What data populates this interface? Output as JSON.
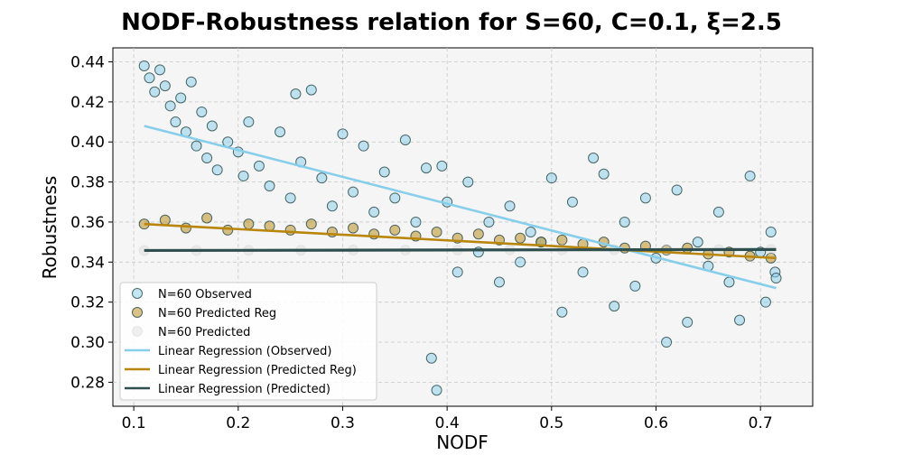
{
  "chart_data": {
    "type": "scatter",
    "title": "NODF-Robustness relation for S=60, C=0.1, ξ=2.5",
    "xlabel": "NODF",
    "ylabel": "Robustness",
    "xlim": [
      0.08,
      0.75
    ],
    "ylim": [
      0.268,
      0.447
    ],
    "xticks": [
      0.1,
      0.2,
      0.3,
      0.4,
      0.5,
      0.6,
      0.7
    ],
    "xtick_labels": [
      "0.1",
      "0.2",
      "0.3",
      "0.4",
      "0.5",
      "0.6",
      "0.7"
    ],
    "yticks": [
      0.28,
      0.3,
      0.32,
      0.34,
      0.36,
      0.38,
      0.4,
      0.42,
      0.44
    ],
    "ytick_labels": [
      "0.28",
      "0.30",
      "0.32",
      "0.34",
      "0.36",
      "0.38",
      "0.40",
      "0.42",
      "0.44"
    ],
    "grid": true,
    "legend_position": "lower-left",
    "series": [
      {
        "name": "N=60 Observed",
        "kind": "scatter",
        "color": "#87CEEB",
        "edge_color": "#2f4f4f",
        "points": [
          [
            0.11,
            0.438
          ],
          [
            0.115,
            0.432
          ],
          [
            0.12,
            0.425
          ],
          [
            0.125,
            0.436
          ],
          [
            0.13,
            0.428
          ],
          [
            0.135,
            0.418
          ],
          [
            0.14,
            0.41
          ],
          [
            0.145,
            0.422
          ],
          [
            0.15,
            0.405
          ],
          [
            0.155,
            0.43
          ],
          [
            0.16,
            0.398
          ],
          [
            0.165,
            0.415
          ],
          [
            0.17,
            0.392
          ],
          [
            0.175,
            0.408
          ],
          [
            0.18,
            0.386
          ],
          [
            0.19,
            0.4
          ],
          [
            0.2,
            0.395
          ],
          [
            0.205,
            0.383
          ],
          [
            0.21,
            0.41
          ],
          [
            0.22,
            0.388
          ],
          [
            0.23,
            0.378
          ],
          [
            0.24,
            0.405
          ],
          [
            0.25,
            0.372
          ],
          [
            0.255,
            0.424
          ],
          [
            0.26,
            0.39
          ],
          [
            0.27,
            0.426
          ],
          [
            0.28,
            0.382
          ],
          [
            0.29,
            0.368
          ],
          [
            0.3,
            0.404
          ],
          [
            0.31,
            0.375
          ],
          [
            0.32,
            0.398
          ],
          [
            0.33,
            0.365
          ],
          [
            0.34,
            0.385
          ],
          [
            0.35,
            0.372
          ],
          [
            0.36,
            0.401
          ],
          [
            0.37,
            0.36
          ],
          [
            0.38,
            0.387
          ],
          [
            0.385,
            0.292
          ],
          [
            0.39,
            0.276
          ],
          [
            0.395,
            0.388
          ],
          [
            0.4,
            0.37
          ],
          [
            0.41,
            0.335
          ],
          [
            0.42,
            0.38
          ],
          [
            0.43,
            0.345
          ],
          [
            0.44,
            0.36
          ],
          [
            0.45,
            0.33
          ],
          [
            0.46,
            0.368
          ],
          [
            0.47,
            0.34
          ],
          [
            0.48,
            0.355
          ],
          [
            0.49,
            0.35
          ],
          [
            0.5,
            0.382
          ],
          [
            0.51,
            0.315
          ],
          [
            0.52,
            0.37
          ],
          [
            0.53,
            0.335
          ],
          [
            0.54,
            0.392
          ],
          [
            0.55,
            0.384
          ],
          [
            0.56,
            0.318
          ],
          [
            0.57,
            0.36
          ],
          [
            0.58,
            0.328
          ],
          [
            0.59,
            0.372
          ],
          [
            0.6,
            0.342
          ],
          [
            0.61,
            0.3
          ],
          [
            0.62,
            0.376
          ],
          [
            0.63,
            0.31
          ],
          [
            0.64,
            0.35
          ],
          [
            0.65,
            0.338
          ],
          [
            0.66,
            0.365
          ],
          [
            0.67,
            0.33
          ],
          [
            0.68,
            0.311
          ],
          [
            0.69,
            0.383
          ],
          [
            0.7,
            0.345
          ],
          [
            0.705,
            0.32
          ],
          [
            0.71,
            0.355
          ],
          [
            0.714,
            0.335
          ],
          [
            0.715,
            0.332
          ]
        ]
      },
      {
        "name": "N=60 Predicted Reg",
        "kind": "scatter",
        "color": "#B8860B",
        "edge_color": "#2f4f4f",
        "points": [
          [
            0.11,
            0.359
          ],
          [
            0.13,
            0.361
          ],
          [
            0.15,
            0.357
          ],
          [
            0.17,
            0.362
          ],
          [
            0.19,
            0.356
          ],
          [
            0.21,
            0.359
          ],
          [
            0.23,
            0.358
          ],
          [
            0.25,
            0.356
          ],
          [
            0.27,
            0.359
          ],
          [
            0.29,
            0.355
          ],
          [
            0.31,
            0.357
          ],
          [
            0.33,
            0.354
          ],
          [
            0.35,
            0.356
          ],
          [
            0.37,
            0.353
          ],
          [
            0.39,
            0.355
          ],
          [
            0.41,
            0.352
          ],
          [
            0.43,
            0.354
          ],
          [
            0.45,
            0.351
          ],
          [
            0.47,
            0.352
          ],
          [
            0.49,
            0.35
          ],
          [
            0.51,
            0.351
          ],
          [
            0.53,
            0.349
          ],
          [
            0.55,
            0.35
          ],
          [
            0.57,
            0.347
          ],
          [
            0.59,
            0.348
          ],
          [
            0.61,
            0.346
          ],
          [
            0.63,
            0.347
          ],
          [
            0.65,
            0.344
          ],
          [
            0.67,
            0.345
          ],
          [
            0.69,
            0.343
          ],
          [
            0.71,
            0.342
          ]
        ]
      },
      {
        "name": "N=60 Predicted",
        "kind": "scatter",
        "color": "#d3d3d3",
        "edge_color": "#d3d3d3",
        "points": [
          [
            0.11,
            0.3458
          ],
          [
            0.16,
            0.3458
          ],
          [
            0.21,
            0.3459
          ],
          [
            0.26,
            0.3459
          ],
          [
            0.31,
            0.346
          ],
          [
            0.36,
            0.346
          ],
          [
            0.41,
            0.346
          ],
          [
            0.46,
            0.3461
          ],
          [
            0.51,
            0.3461
          ],
          [
            0.56,
            0.3462
          ],
          [
            0.61,
            0.3462
          ],
          [
            0.66,
            0.3462
          ],
          [
            0.71,
            0.3463
          ]
        ]
      },
      {
        "name": "Linear Regression (Observed)",
        "kind": "line",
        "color": "#87CEEB",
        "x": [
          0.11,
          0.715
        ],
        "y": [
          0.408,
          0.327
        ]
      },
      {
        "name": "Linear Regression (Predicted Reg)",
        "kind": "line",
        "color": "#B8860B",
        "x": [
          0.11,
          0.715
        ],
        "y": [
          0.359,
          0.342
        ]
      },
      {
        "name": "Linear Regression (Predicted)",
        "kind": "line",
        "color": "#2F4F4F",
        "x": [
          0.11,
          0.715
        ],
        "y": [
          0.3458,
          0.3463
        ]
      }
    ]
  }
}
